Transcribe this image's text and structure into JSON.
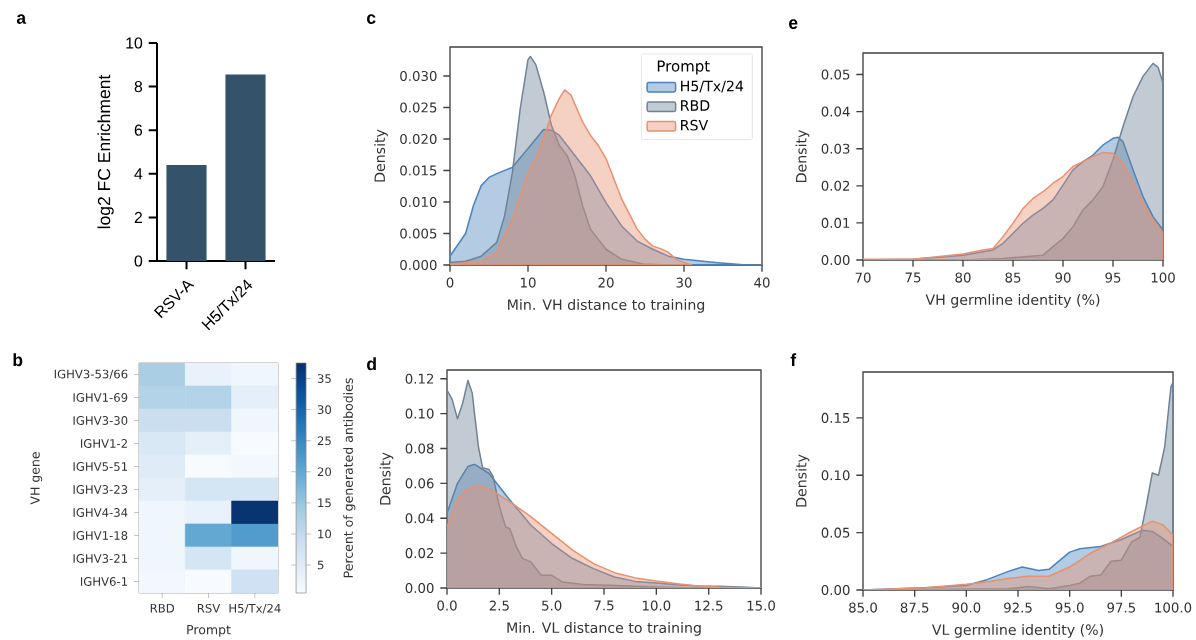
{
  "chart_data": [
    {
      "type": "bar",
      "title": "a",
      "ylabel": "log2 FC Enrichment",
      "categories": [
        "RSV-A",
        "H5/Tx/24"
      ],
      "values": [
        4.4,
        8.55
      ],
      "color": "#34526a",
      "ylim": [
        0,
        10
      ],
      "yticks": [
        0,
        2,
        4,
        6,
        8,
        10
      ]
    },
    {
      "type": "area",
      "title": "c",
      "xlabel": "Min. VH distance to training",
      "ylabel": "Density",
      "legend_title": "Prompt",
      "legend": "top right",
      "series": [
        {
          "name": "H5/Tx/24",
          "color": "#4a84bd",
          "x": [
            0,
            2,
            3,
            4,
            5,
            6,
            8,
            10,
            12,
            13,
            14,
            16,
            18,
            20,
            22,
            24,
            26,
            28,
            30,
            34,
            38,
            40
          ],
          "values": [
            0.0014,
            0.005,
            0.0094,
            0.0126,
            0.0139,
            0.0145,
            0.0155,
            0.0185,
            0.0215,
            0.0214,
            0.0206,
            0.0174,
            0.0142,
            0.0099,
            0.0062,
            0.0038,
            0.0025,
            0.0014,
            0.0009,
            0.0004,
            0,
            0
          ]
        },
        {
          "name": "RBD",
          "color": "#6e8396",
          "x": [
            0,
            2,
            4,
            6,
            7,
            8,
            9,
            10,
            10.3,
            11,
            12,
            13,
            14,
            15,
            16,
            17,
            18,
            20,
            22,
            25,
            28
          ],
          "values": [
            0.0004,
            0.0006,
            0.0014,
            0.0036,
            0.0078,
            0.0147,
            0.0248,
            0.0326,
            0.0331,
            0.0318,
            0.0275,
            0.0222,
            0.019,
            0.0174,
            0.0142,
            0.0094,
            0.0057,
            0.0025,
            0.0009,
            0.0001,
            0
          ]
        },
        {
          "name": "RSV",
          "color": "#e8916f",
          "x": [
            0,
            4,
            6,
            8,
            10,
            11,
            12,
            13,
            14,
            14.7,
            15.5,
            17,
            18,
            19,
            20,
            22,
            24,
            25,
            26,
            27,
            28,
            29,
            30,
            31
          ],
          "values": [
            0.0001,
            0.0006,
            0.002,
            0.0073,
            0.0147,
            0.0169,
            0.0201,
            0.0238,
            0.0264,
            0.0278,
            0.027,
            0.0227,
            0.0206,
            0.019,
            0.0169,
            0.0105,
            0.0057,
            0.0041,
            0.003,
            0.0026,
            0.002,
            0.0009,
            0.0004,
            0
          ]
        }
      ],
      "xlim": [
        0,
        40
      ],
      "xticks": [
        0,
        10,
        20,
        30,
        40
      ],
      "ylim": [
        0,
        0.0346
      ],
      "yticks": [
        {
          "value": 0,
          "label": "0.000"
        },
        {
          "value": 0.005,
          "label": "0.005"
        },
        {
          "value": 0.01,
          "label": "0.010"
        },
        {
          "value": 0.015,
          "label": "0.015"
        },
        {
          "value": 0.02,
          "label": "0.020"
        },
        {
          "value": 0.025,
          "label": "0.025"
        },
        {
          "value": 0.03,
          "label": "0.030"
        }
      ]
    },
    {
      "type": "area",
      "title": "e",
      "xlabel": "VH germline identity (%)",
      "ylabel": "Density",
      "series": [
        {
          "color": "#4a84bd",
          "x": [
            70,
            75,
            80,
            83,
            84,
            85,
            86,
            87,
            88,
            89,
            90,
            91,
            92,
            93,
            94,
            95,
            95.5,
            96,
            97,
            98,
            99,
            100
          ],
          "values": [
            0,
            0.0002,
            0.0013,
            0.0027,
            0.0045,
            0.0072,
            0.0099,
            0.0121,
            0.0139,
            0.0162,
            0.0202,
            0.0243,
            0.0265,
            0.0283,
            0.031,
            0.0328,
            0.0331,
            0.0319,
            0.0243,
            0.0171,
            0.0117,
            0.0081
          ]
        },
        {
          "color": "#6e8396",
          "x": [
            70,
            80,
            84,
            88,
            89,
            90,
            91,
            92,
            93,
            94,
            95,
            96,
            97,
            98,
            99,
            99.5,
            100
          ],
          "values": [
            0,
            0,
            0.0004,
            0.0013,
            0.0036,
            0.0058,
            0.009,
            0.0135,
            0.0162,
            0.0198,
            0.027,
            0.036,
            0.044,
            0.0495,
            0.053,
            0.052,
            0.0477
          ]
        },
        {
          "color": "#e8916f",
          "x": [
            70,
            75,
            80,
            82,
            83,
            84,
            85,
            86,
            87,
            88,
            89,
            90,
            91,
            92,
            93,
            94,
            95,
            96,
            97,
            98,
            99,
            100
          ],
          "values": [
            0.0002,
            0.0002,
            0.0016,
            0.0027,
            0.0031,
            0.0063,
            0.0099,
            0.0139,
            0.0166,
            0.0184,
            0.0207,
            0.0225,
            0.0252,
            0.0265,
            0.0279,
            0.029,
            0.0288,
            0.0261,
            0.0207,
            0.0153,
            0.0108,
            0.0072
          ]
        }
      ],
      "xlim": [
        70,
        100
      ],
      "xticks": [
        70,
        75,
        80,
        85,
        90,
        95,
        100
      ],
      "ylim": [
        0,
        0.0558
      ],
      "yticks": [
        {
          "value": 0,
          "label": "0.00"
        },
        {
          "value": 0.01,
          "label": "0.01"
        },
        {
          "value": 0.02,
          "label": "0.02"
        },
        {
          "value": 0.03,
          "label": "0.03"
        },
        {
          "value": 0.04,
          "label": "0.04"
        },
        {
          "value": 0.05,
          "label": "0.05"
        }
      ]
    },
    {
      "type": "heatmap",
      "title": "b",
      "xlabel": "Prompt",
      "ylabel": "VH gene",
      "clabel": "Percent of generated antibodies",
      "categories": [
        "RBD",
        "RSV",
        "H5/Tx/24"
      ],
      "y_categories": [
        "IGHV3-53/66",
        "IGHV1-69",
        "IGHV3-30",
        "IGHV1-2",
        "IGHV5-51",
        "IGHV3-23",
        "IGHV4-34",
        "IGHV1-18",
        "IGHV3-21",
        "IGHV6-1"
      ],
      "cells": [
        [
          13,
          3,
          2
        ],
        [
          12,
          12,
          4
        ],
        [
          9,
          9,
          2
        ],
        [
          6,
          4,
          0.5
        ],
        [
          5,
          0.5,
          1.5
        ],
        [
          4,
          7,
          7
        ],
        [
          2,
          3,
          37
        ],
        [
          2,
          20,
          22
        ],
        [
          2,
          7,
          2
        ],
        [
          1.5,
          0.5,
          8
        ]
      ],
      "clim": [
        0.5,
        37.5
      ],
      "cticks": [
        5,
        10,
        15,
        20,
        25,
        30,
        35
      ]
    },
    {
      "type": "area",
      "title": "d",
      "xlabel": "Min. VL distance to training",
      "ylabel": "Density",
      "series": [
        {
          "color": "#4a84bd",
          "x": [
            0,
            0.5,
            1,
            1.3,
            2,
            3,
            4,
            5,
            6,
            7,
            8,
            9,
            10,
            11,
            12,
            13,
            14,
            15
          ],
          "values": [
            0.0428,
            0.06,
            0.0697,
            0.071,
            0.0658,
            0.0505,
            0.0361,
            0.0255,
            0.0169,
            0.0111,
            0.0063,
            0.0038,
            0.0029,
            0.0019,
            0.0012,
            0.001,
            0.0006,
            0
          ]
        },
        {
          "color": "#6e8396",
          "x": [
            0,
            0.25,
            0.5,
            0.75,
            1,
            1.2,
            1.5,
            1.7,
            2,
            2.2,
            2.5,
            2.8,
            3,
            3.3,
            3.6,
            4,
            4.5,
            5,
            5.5,
            6.5,
            8,
            10,
            12
          ],
          "values": [
            0.1135,
            0.108,
            0.097,
            0.106,
            0.119,
            0.112,
            0.081,
            0.069,
            0.068,
            0.064,
            0.047,
            0.035,
            0.034,
            0.024,
            0.017,
            0.015,
            0.0073,
            0.0073,
            0.0035,
            0.002,
            0.0015,
            0.0006,
            0
          ]
        },
        {
          "color": "#e8916f",
          "x": [
            0,
            0.5,
            1,
            1.5,
            2,
            3,
            4,
            5,
            6,
            7,
            8,
            9,
            10,
            11,
            12,
            13,
            15
          ],
          "values": [
            0.035,
            0.0505,
            0.057,
            0.059,
            0.057,
            0.0495,
            0.0409,
            0.0313,
            0.0217,
            0.014,
            0.0088,
            0.0058,
            0.004,
            0.0025,
            0.0012,
            0.0006,
            0
          ]
        }
      ],
      "xlim": [
        0,
        15
      ],
      "xticks": [
        {
          "value": 0,
          "label": "0.0"
        },
        {
          "value": 2.5,
          "label": "2.5"
        },
        {
          "value": 5,
          "label": "5.0"
        },
        {
          "value": 7.5,
          "label": "7.5"
        },
        {
          "value": 10,
          "label": "10.0"
        },
        {
          "value": 12.5,
          "label": "12.5"
        },
        {
          "value": 15,
          "label": "15.0"
        }
      ],
      "ylim": [
        0,
        0.125
      ],
      "yticks": [
        {
          "value": 0,
          "label": "0.00"
        },
        {
          "value": 0.02,
          "label": "0.02"
        },
        {
          "value": 0.04,
          "label": "0.04"
        },
        {
          "value": 0.06,
          "label": "0.06"
        },
        {
          "value": 0.08,
          "label": "0.08"
        },
        {
          "value": 0.1,
          "label": "0.10"
        },
        {
          "value": 0.12,
          "label": "0.12"
        }
      ]
    },
    {
      "type": "area",
      "title": "f",
      "xlabel": "VL germline identity (%)",
      "ylabel": "Density",
      "series": [
        {
          "color": "#4a84bd",
          "x": [
            85,
            88,
            90,
            91,
            92,
            92.7,
            93.5,
            94,
            95,
            95.5,
            96.5,
            97.5,
            98.5,
            99,
            99.5,
            100
          ],
          "values": [
            0,
            0.002,
            0.004,
            0.009,
            0.016,
            0.02,
            0.017,
            0.018,
            0.033,
            0.036,
            0.038,
            0.044,
            0.052,
            0.051,
            0.045,
            0.038
          ]
        },
        {
          "color": "#6e8396",
          "x": [
            85,
            92,
            93,
            94,
            95,
            95.5,
            96,
            96.5,
            97,
            97.5,
            98,
            98.4,
            98.7,
            99,
            99.3,
            99.6,
            99.9,
            100
          ],
          "values": [
            0,
            0.001,
            0.003,
            0.001,
            0.004,
            0.006,
            0.012,
            0.013,
            0.025,
            0.026,
            0.042,
            0.046,
            0.073,
            0.102,
            0.1,
            0.125,
            0.177,
            0.181
          ]
        },
        {
          "color": "#e8916f",
          "x": [
            85,
            88,
            90,
            91,
            92,
            93,
            94,
            95,
            96,
            97,
            98,
            99,
            99.5,
            100
          ],
          "values": [
            0,
            0.002,
            0.005,
            0.007,
            0.01,
            0.012,
            0.012,
            0.02,
            0.032,
            0.041,
            0.051,
            0.06,
            0.057,
            0.048
          ]
        }
      ],
      "xlim": [
        85,
        100
      ],
      "xticks": [
        {
          "value": 85,
          "label": "85.0"
        },
        {
          "value": 87.5,
          "label": "87.5"
        },
        {
          "value": 90,
          "label": "90.0"
        },
        {
          "value": 92.5,
          "label": "92.5"
        },
        {
          "value": 95,
          "label": "95.0"
        },
        {
          "value": 97.5,
          "label": "97.5"
        },
        {
          "value": 100,
          "label": "100.0"
        }
      ],
      "ylim": [
        0,
        0.19
      ],
      "yticks": [
        {
          "value": 0,
          "label": "0.00"
        },
        {
          "value": 0.05,
          "label": "0.05"
        },
        {
          "value": 0.1,
          "label": "0.10"
        },
        {
          "value": 0.15,
          "label": "0.15"
        }
      ]
    }
  ]
}
